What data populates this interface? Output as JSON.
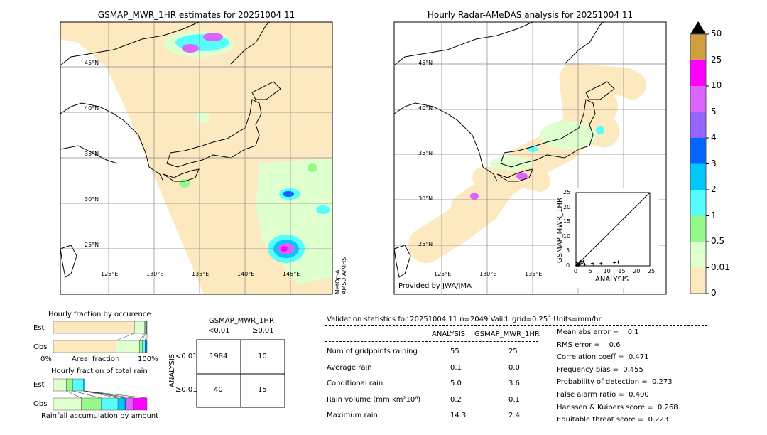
{
  "left_map": {
    "title": "GSMAP_MWR_1HR estimates for 20251004 11",
    "lat_labels": [
      "45°N",
      "40°N",
      "35°N",
      "30°N",
      "25°N"
    ],
    "lon_labels": [
      "125°E",
      "130°E",
      "135°E",
      "140°E",
      "145°E"
    ],
    "sensor_label": "MetOp-A\nAMSU-A/MHS",
    "sensor_line1": "MetOp-A",
    "sensor_line2": "AMSU-A/MHS"
  },
  "right_map": {
    "title": "Hourly Radar-AMeDAS analysis for 20251004 11",
    "lat_labels": [
      "45°N",
      "40°N",
      "35°N",
      "30°N",
      "25°N"
    ],
    "lon_labels": [
      "125°E",
      "130°E",
      "135°E"
    ],
    "credit": "Provided by JWA/JMA"
  },
  "colorbar": {
    "levels": [
      "0",
      "0.01",
      "0.5",
      "1",
      "2",
      "3",
      "4",
      "5",
      "10",
      "25",
      "50"
    ],
    "colors": [
      "#fde9c0",
      "#dfffcf",
      "#96f98c",
      "#57fdfd",
      "#00c8ff",
      "#0064ff",
      "#9664ff",
      "#dc64ff",
      "#ff00ff",
      "#d0a040"
    ],
    "extend_color": "#000000"
  },
  "occurrence_chart": {
    "title": "Hourly fraction by occurence",
    "rows": [
      "Est",
      "Obs"
    ],
    "xlabel": "Areal fraction",
    "x_min_label": "0%",
    "x_max_label": "100%",
    "est": [
      0.865,
      0.11,
      0.01,
      0.01,
      0.005
    ],
    "obs": [
      0.67,
      0.25,
      0.03,
      0.03,
      0.02
    ]
  },
  "rain_chart": {
    "title": "Hourly fraction of total rain",
    "rows": [
      "Est",
      "Obs"
    ],
    "xlabel": "Rainfall accumulation by amount",
    "est": [
      0.14,
      0.07,
      0.11,
      0.015,
      0.0,
      0.0,
      0.0
    ],
    "obs": [
      0.3,
      0.21,
      0.18,
      0.075,
      0.01,
      0.075,
      0.15
    ]
  },
  "contingency": {
    "col_title": "GSMAP_MWR_1HR",
    "col_labels": [
      "<0.01",
      "≥0.01"
    ],
    "row_title": "ANALYSIS",
    "row_labels": [
      "<0.01",
      "≥0.01"
    ],
    "cells": [
      [
        "1984",
        "10"
      ],
      [
        "40",
        "15"
      ]
    ]
  },
  "validation": {
    "header": "Validation statistics for 20251004 11  n=2049 Valid. grid=0.25˚ Units=mm/hr.",
    "col_headers": [
      "ANALYSIS",
      "GSMAP_MWR_1HR"
    ],
    "rows": [
      {
        "label": "Num of gridpoints raining",
        "analysis": "55",
        "gsmap": "25"
      },
      {
        "label": "Average rain",
        "analysis": "0.1",
        "gsmap": "0.0"
      },
      {
        "label": "Conditional rain",
        "analysis": "5.0",
        "gsmap": "3.6"
      },
      {
        "label": "Rain volume (mm km²10⁶)",
        "analysis": "0.2",
        "gsmap": "0.1"
      },
      {
        "label": "Maximum rain",
        "analysis": "14.3",
        "gsmap": "2.4"
      }
    ],
    "scores": [
      "Mean abs error =    0.1",
      "RMS error =    0.6",
      "Correlation coeff =  0.471",
      "Frequency bias =  0.455",
      "Probability of detection =  0.273",
      "False alarm ratio =  0.400",
      "Hanssen & Kuipers score =  0.268",
      "Equitable threat score =  0.223"
    ]
  },
  "chart_data": {
    "type": "scatter",
    "xlabel": "ANALYSIS",
    "ylabel": "GSMAP_MWR_1HR",
    "xlim": [
      0,
      25
    ],
    "ylim": [
      0,
      25
    ],
    "ticks": [
      "0",
      "5",
      "10",
      "15",
      "20",
      "25"
    ],
    "points": [
      [
        0.2,
        0.1
      ],
      [
        0.4,
        0.3
      ],
      [
        0.6,
        0.5
      ],
      [
        0.8,
        0.2
      ],
      [
        1.0,
        0.8
      ],
      [
        0.3,
        1.2
      ],
      [
        1.2,
        0.4
      ],
      [
        1.5,
        1.5
      ],
      [
        2.0,
        0.9
      ],
      [
        2.5,
        1.5
      ],
      [
        3.0,
        0.5
      ],
      [
        5.5,
        0.8
      ],
      [
        6.0,
        0.6
      ],
      [
        8.5,
        0.8
      ],
      [
        13.0,
        1.1
      ],
      [
        14.3,
        1.3
      ]
    ]
  }
}
